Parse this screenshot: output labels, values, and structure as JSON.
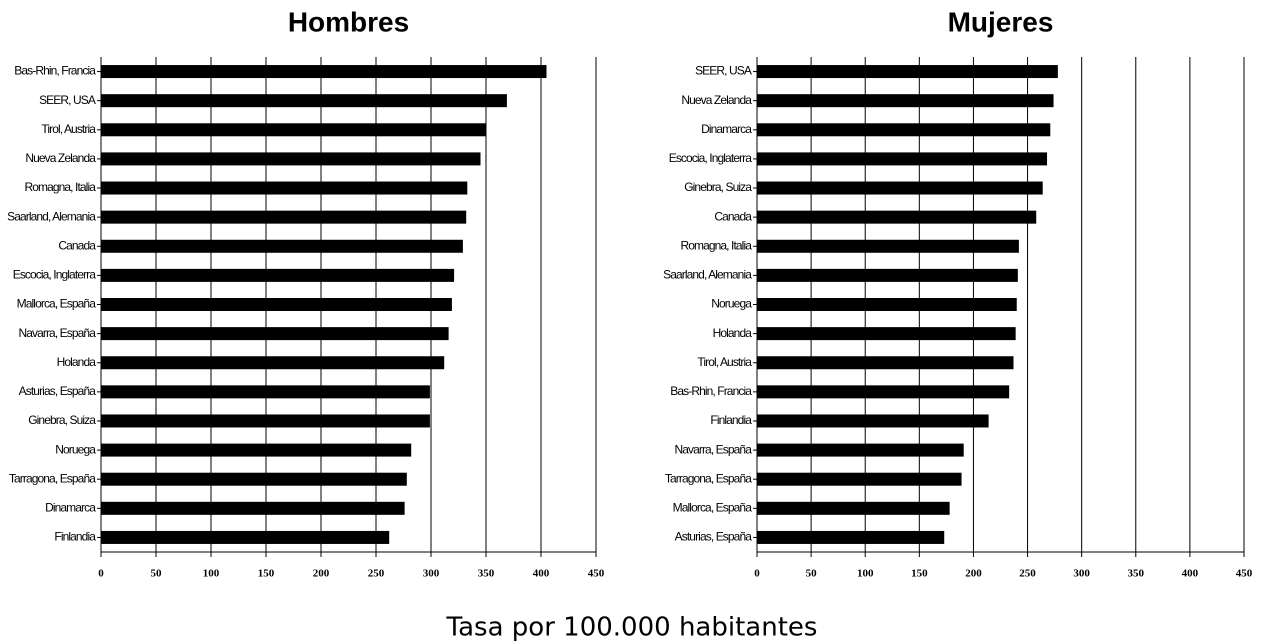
{
  "xlabel": "Tasa por 100.000 habitantes",
  "chart_data": [
    {
      "type": "bar",
      "orientation": "horizontal",
      "title": "Hombres",
      "categories": [
        "Bas-Rhin, Francia",
        "SEER, USA",
        "Tirol, Austria",
        "Nueva Zelanda",
        "Romagna, Italia",
        "Saarland, Alemania",
        "Canada",
        "Escocia, Inglaterra",
        "Mallorca, España",
        "Navarra, España",
        "Holanda",
        "Asturias, España",
        "Ginebra, Suiza",
        "Noruega",
        "Tarragona, España",
        "Dinamarca",
        "Finlandia"
      ],
      "values": [
        405,
        369,
        350,
        345,
        333,
        332,
        329,
        321,
        319,
        316,
        312,
        299,
        299,
        282,
        278,
        276,
        262
      ],
      "color": "#000000",
      "xlim": [
        0,
        450
      ],
      "xticks": [
        0,
        50,
        100,
        150,
        200,
        250,
        300,
        350,
        400,
        450
      ],
      "grid": true
    },
    {
      "type": "bar",
      "orientation": "horizontal",
      "title": "Mujeres",
      "categories": [
        "SEER, USA",
        "Nueva Zelanda",
        "Dinamarca",
        "Escocia, Inglaterra",
        "Ginebra, Suiza",
        "Canada",
        "Romagna, Italia",
        "Saarland, Alemania",
        "Noruega",
        "Holanda",
        "Tirol, Austria",
        "Bas-Rhin, Francia",
        "Finlandia",
        "Navarra, España",
        "Tarragona, España",
        "Mallorca, España",
        "Asturias, España"
      ],
      "values": [
        278,
        274,
        271,
        268,
        264,
        258,
        242,
        241,
        240,
        239,
        237,
        233,
        214,
        191,
        189,
        178,
        173
      ],
      "color": "#000000",
      "xlim": [
        0,
        450
      ],
      "xticks": [
        0,
        50,
        100,
        150,
        200,
        250,
        300,
        350,
        400,
        450
      ],
      "grid": true
    }
  ]
}
